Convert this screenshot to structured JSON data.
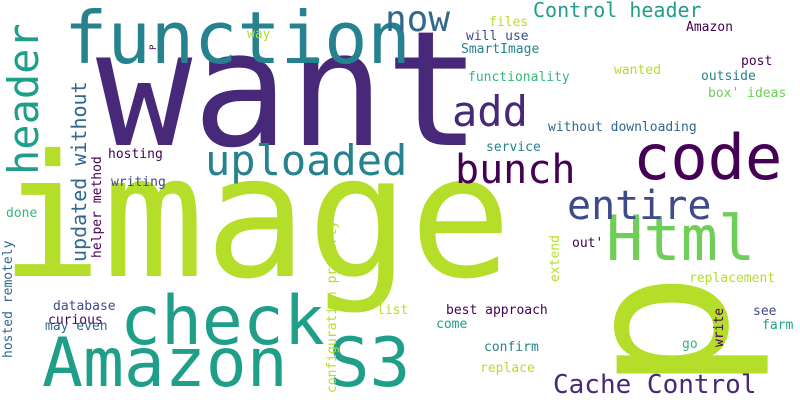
{
  "words": {
    "want": "want",
    "image": "image",
    "p": "p",
    "function": "function",
    "code": "code",
    "Html": "Html",
    "check": "check",
    "Amazon S3": "Amazon S3",
    "uploaded": "uploaded",
    "bunch": "bunch",
    "header": "header",
    "now": "now",
    "add": "add",
    "entire": "entire",
    "Cache Control": "Cache Control",
    "Control header": "Control header",
    "updated without": "updated without",
    "Amazon": "Amazon",
    "files": "files",
    "will use": "will use",
    "way": "way",
    "SmartImage": "SmartImage",
    "post": "post",
    "functionality": "functionality",
    "wanted": "wanted",
    "outside": "outside",
    "box' ideas": "box' ideas",
    "without downloading": "without downloading",
    "hosting": "hosting",
    "service": "service",
    "writing": "writing",
    "helper method": "helper method",
    "done": "done",
    "hosted remotely": "hosted remotely",
    "configuration property": "configuration property",
    "extend": "extend",
    "out'": "out'",
    "replacement": "replacement",
    "database": "database",
    "curious": "curious",
    "may even": "may even",
    "list": "list",
    "best approach": "best approach",
    "come": "come",
    "see": "see",
    "farm": "farm",
    "write": "write",
    "confirm": "confirm",
    "go": "go",
    "replace": "replace",
    "P": "P"
  }
}
